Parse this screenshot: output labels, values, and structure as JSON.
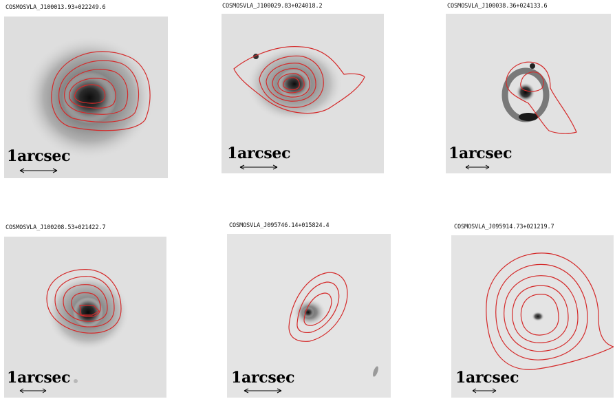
{
  "panels": [
    {
      "title": "COSMOSVLA_J100013.93+022249.6",
      "scale_label": "1arcsec"
    },
    {
      "title": "COSMOSVLA_J100029.83+024018.2",
      "scale_label": "1arcsec"
    },
    {
      "title": "COSMOSVLA_J100038.36+024133.6",
      "scale_label": "1arcsec"
    },
    {
      "title": "COSMOSVLA_J100208.53+021422.7",
      "scale_label": "1arcsec"
    },
    {
      "title": "COSMOSVLA_J095746.14+015824.4",
      "scale_label": "1arcsec"
    },
    {
      "title": "COSMOSVLA_J095914.73+021219.7",
      "scale_label": "1arcsec"
    }
  ],
  "colors": {
    "contour": "#d42a2a",
    "background": "#dcdcdc",
    "galaxy_core": "#101010"
  }
}
